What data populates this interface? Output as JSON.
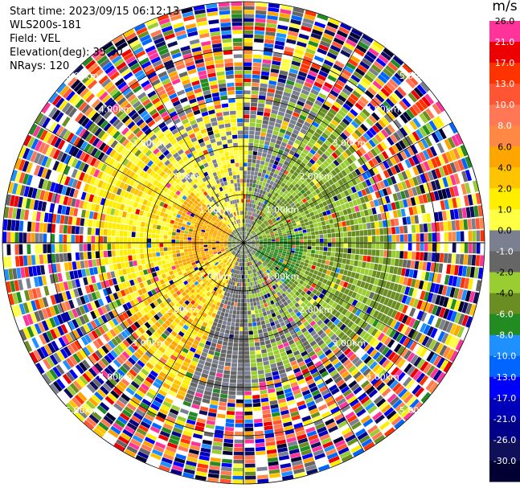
{
  "info": {
    "start_time": "Start time: 2023/09/15 06:12:13",
    "instrument": "WLS200s-181",
    "field": "Field: VEL",
    "elevation": "Elevation(deg): 35.30",
    "nrays": "NRays: 120"
  },
  "colorbar": {
    "unit": "m/s",
    "levels": [
      {
        "label": "26.0",
        "color": "#ff3399",
        "text": "#000000"
      },
      {
        "label": "21.0",
        "color": "#ee0000",
        "text": "#ffffff"
      },
      {
        "label": "17.0",
        "color": "#ff3300",
        "text": "#ffffff"
      },
      {
        "label": "13.0",
        "color": "#ff5533",
        "text": "#ffffff"
      },
      {
        "label": "10.0",
        "color": "#ff7755",
        "text": "#ffffff"
      },
      {
        "label": "8.0",
        "color": "#ff8844",
        "text": "#ffffff"
      },
      {
        "label": "6.0",
        "color": "#ffa500",
        "text": "#000000"
      },
      {
        "label": "4.0",
        "color": "#ffc400",
        "text": "#000000"
      },
      {
        "label": "2.0",
        "color": "#ffee00",
        "text": "#000000"
      },
      {
        "label": "1.0",
        "color": "#ffff44",
        "text": "#000000"
      },
      {
        "label": "0.0",
        "color": "#7a8090",
        "text": "#000000"
      },
      {
        "label": "-1.0",
        "color": "#666666",
        "text": "#ffffff"
      },
      {
        "label": "-2.0",
        "color": "#9acd32",
        "text": "#000000"
      },
      {
        "label": "-4.0",
        "color": "#6b8e23",
        "text": "#000000"
      },
      {
        "label": "-6.0",
        "color": "#228b22",
        "text": "#ffffff"
      },
      {
        "label": "-8.0",
        "color": "#1e90ff",
        "text": "#ffffff"
      },
      {
        "label": "-10.0",
        "color": "#0066ff",
        "text": "#ffffff"
      },
      {
        "label": "-13.0",
        "color": "#0000ff",
        "text": "#ffffff"
      },
      {
        "label": "-17.0",
        "color": "#0000bb",
        "text": "#ffffff"
      },
      {
        "label": "-21.0",
        "color": "#000088",
        "text": "#ffffff"
      },
      {
        "label": "-26.0",
        "color": "#10105a",
        "text": "#ffffff"
      },
      {
        "label": "-30.0",
        "color": "#000033",
        "text": "#ffffff"
      }
    ]
  },
  "chart_data": {
    "type": "ppi",
    "field": "VEL",
    "unit": "m/s",
    "nrays": 120,
    "elevation_deg": 35.3,
    "range_rings": [
      "1.00km",
      "2.00km",
      "3.00km",
      "4.00km",
      "5.00km"
    ],
    "sectors": [
      {
        "azimuth_deg": [
          315,
          360
        ],
        "dominant_velocity": "1.0 to 2.0"
      },
      {
        "azimuth_deg": [
          0,
          30
        ],
        "dominant_velocity": "0.0 to -1.0"
      },
      {
        "azimuth_deg": [
          30,
          135
        ],
        "dominant_velocity": "-2.0 to -6.0"
      },
      {
        "azimuth_deg": [
          135,
          200
        ],
        "dominant_velocity": "-1.0 to -2.0"
      },
      {
        "azimuth_deg": [
          200,
          250
        ],
        "dominant_velocity": "4.0 to 6.0"
      },
      {
        "azimuth_deg": [
          250,
          315
        ],
        "dominant_velocity": "2.0 to 6.0"
      }
    ],
    "far_range": "noise"
  }
}
